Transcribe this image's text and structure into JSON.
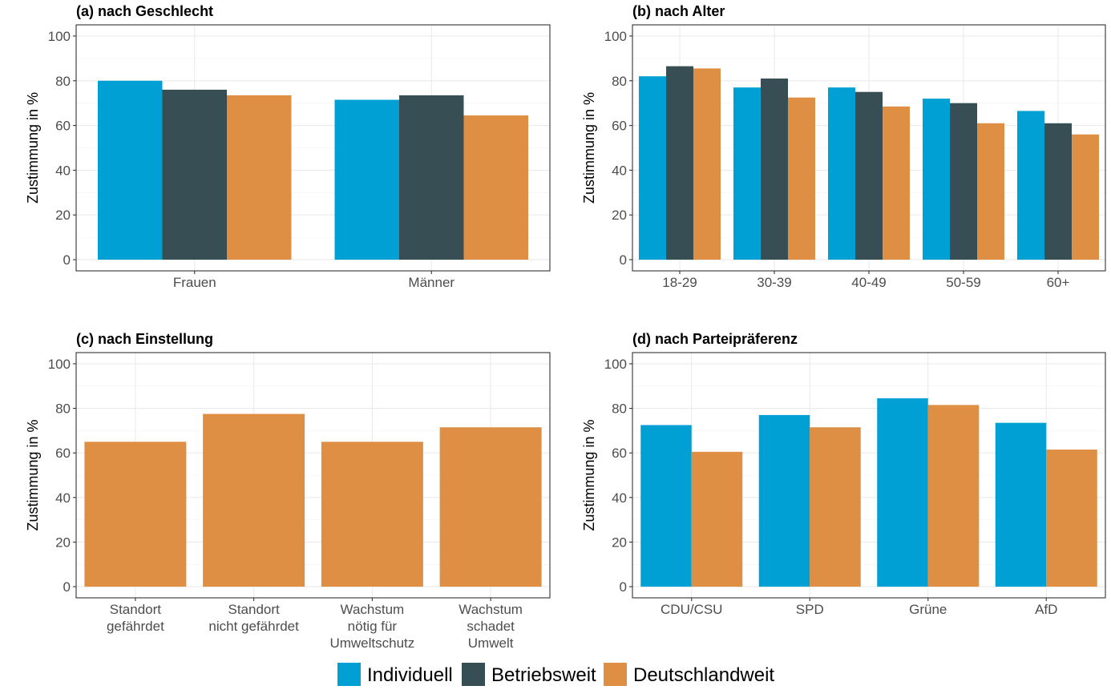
{
  "colors": {
    "Individuell": "#00a0d5",
    "Betriebsweit": "#374e55",
    "Deutschlandweit": "#df8f44"
  },
  "legend": {
    "items": [
      "Individuell",
      "Betriebsweit",
      "Deutschlandweit"
    ]
  },
  "chart_data": [
    {
      "type": "bar",
      "title": "(a) nach Geschlecht",
      "ylabel": "Zustimmung in %",
      "ylim": [
        0,
        100
      ],
      "yticks": [
        0,
        20,
        40,
        60,
        80,
        100
      ],
      "grid": true,
      "categories": [
        [
          "Frauen"
        ],
        [
          "Männer"
        ]
      ],
      "series": [
        {
          "name": "Individuell",
          "values": [
            80,
            71.5
          ]
        },
        {
          "name": "Betriebsweit",
          "values": [
            76,
            73.5
          ]
        },
        {
          "name": "Deutschlandweit",
          "values": [
            73.5,
            64.5
          ]
        }
      ]
    },
    {
      "type": "bar",
      "title": "(b) nach Alter",
      "ylabel": "Zustimmung in %",
      "ylim": [
        0,
        100
      ],
      "yticks": [
        0,
        20,
        40,
        60,
        80,
        100
      ],
      "grid": true,
      "categories": [
        [
          "18-29"
        ],
        [
          "30-39"
        ],
        [
          "40-49"
        ],
        [
          "50-59"
        ],
        [
          "60+"
        ]
      ],
      "series": [
        {
          "name": "Individuell",
          "values": [
            82,
            77,
            77,
            72,
            66.5
          ]
        },
        {
          "name": "Betriebsweit",
          "values": [
            86.5,
            81,
            75,
            70,
            61
          ]
        },
        {
          "name": "Deutschlandweit",
          "values": [
            85.5,
            72.5,
            68.5,
            61,
            56
          ]
        }
      ]
    },
    {
      "type": "bar",
      "title": "(c) nach Einstellung",
      "ylabel": "Zustimmung in %",
      "ylim": [
        0,
        100
      ],
      "yticks": [
        0,
        20,
        40,
        60,
        80,
        100
      ],
      "grid": true,
      "categories": [
        [
          "Standort",
          "gefährdet"
        ],
        [
          "Standort",
          "nicht gefährdet"
        ],
        [
          "Wachstum",
          "nötig für",
          "Umweltschutz"
        ],
        [
          "Wachstum",
          "schadet",
          "Umwelt"
        ]
      ],
      "series": [
        {
          "name": "Deutschlandweit",
          "values": [
            65,
            77.5,
            65,
            71.5
          ]
        }
      ]
    },
    {
      "type": "bar",
      "title": "(d) nach Parteipräferenz",
      "ylabel": "Zustimmung in %",
      "ylim": [
        0,
        100
      ],
      "yticks": [
        0,
        20,
        40,
        60,
        80,
        100
      ],
      "grid": true,
      "categories": [
        [
          "CDU/CSU"
        ],
        [
          "SPD"
        ],
        [
          "Grüne"
        ],
        [
          "AfD"
        ]
      ],
      "series": [
        {
          "name": "Individuell",
          "values": [
            72.5,
            77,
            84.5,
            73.5
          ]
        },
        {
          "name": "Deutschlandweit",
          "values": [
            60.5,
            71.5,
            81.5,
            61.5
          ]
        }
      ]
    }
  ]
}
